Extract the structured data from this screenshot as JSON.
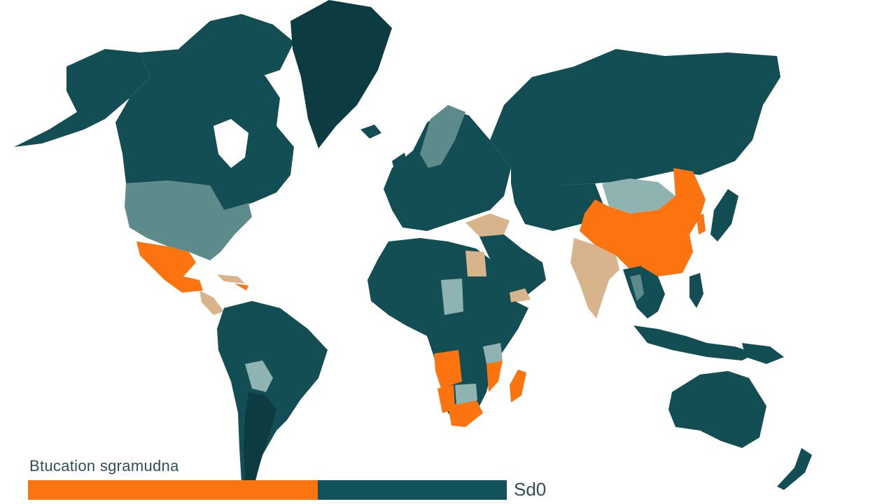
{
  "legend": {
    "title": "Btucation sgramudna",
    "value_label": "Sd0",
    "segments": [
      {
        "color": "#fc7410",
        "fraction": 0.605
      },
      {
        "color": "#12535b",
        "fraction": 0.395
      }
    ]
  },
  "palette": {
    "dark_teal": "#134e55",
    "darkest": "#0d3b42",
    "mid_teal": "#5d8a8a",
    "light_teal": "#8fb3b0",
    "orange": "#fc7410",
    "tan": "#d8b48c",
    "ocean": "#ffffff"
  }
}
